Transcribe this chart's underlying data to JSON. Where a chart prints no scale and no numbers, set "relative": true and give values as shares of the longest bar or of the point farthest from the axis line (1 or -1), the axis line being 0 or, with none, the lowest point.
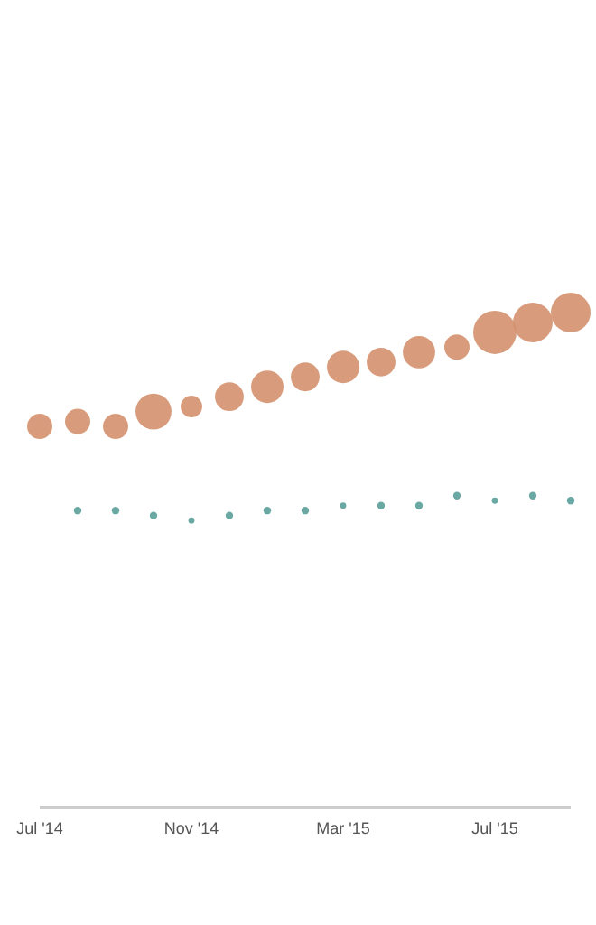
{
  "chart_data": {
    "type": "bubble",
    "relative": true,
    "categories": [
      "Jul '14",
      null,
      null,
      null,
      "Nov '14",
      null,
      null,
      null,
      "Mar '15",
      null,
      null,
      null,
      "Jul '15",
      null,
      null
    ],
    "series": [
      {
        "color": "#d4916f",
        "values": [
          0.77,
          0.78,
          0.77,
          0.8,
          0.81,
          0.83,
          0.85,
          0.87,
          0.89,
          0.9,
          0.92,
          0.93,
          0.96,
          0.98,
          1
        ],
        "sizes": [
          0.34,
          0.34,
          0.34,
          0.69,
          0.25,
          0.44,
          0.56,
          0.44,
          0.56,
          0.44,
          0.56,
          0.34,
          1,
          0.84,
          0.84
        ]
      },
      {
        "color": "#5a9e9a",
        "values": [
          null,
          0.6,
          0.6,
          0.59,
          0.58,
          0.59,
          0.6,
          0.6,
          0.61,
          0.61,
          0.61,
          0.63,
          0.62,
          0.63,
          0.62
        ],
        "sizes": [
          null,
          0.03,
          0.03,
          0.03,
          0.02,
          0.03,
          0.03,
          0.03,
          0.02,
          0.03,
          0.03,
          0.03,
          0.02,
          0.03,
          0.03
        ]
      }
    ],
    "grid": false,
    "legend": false
  }
}
